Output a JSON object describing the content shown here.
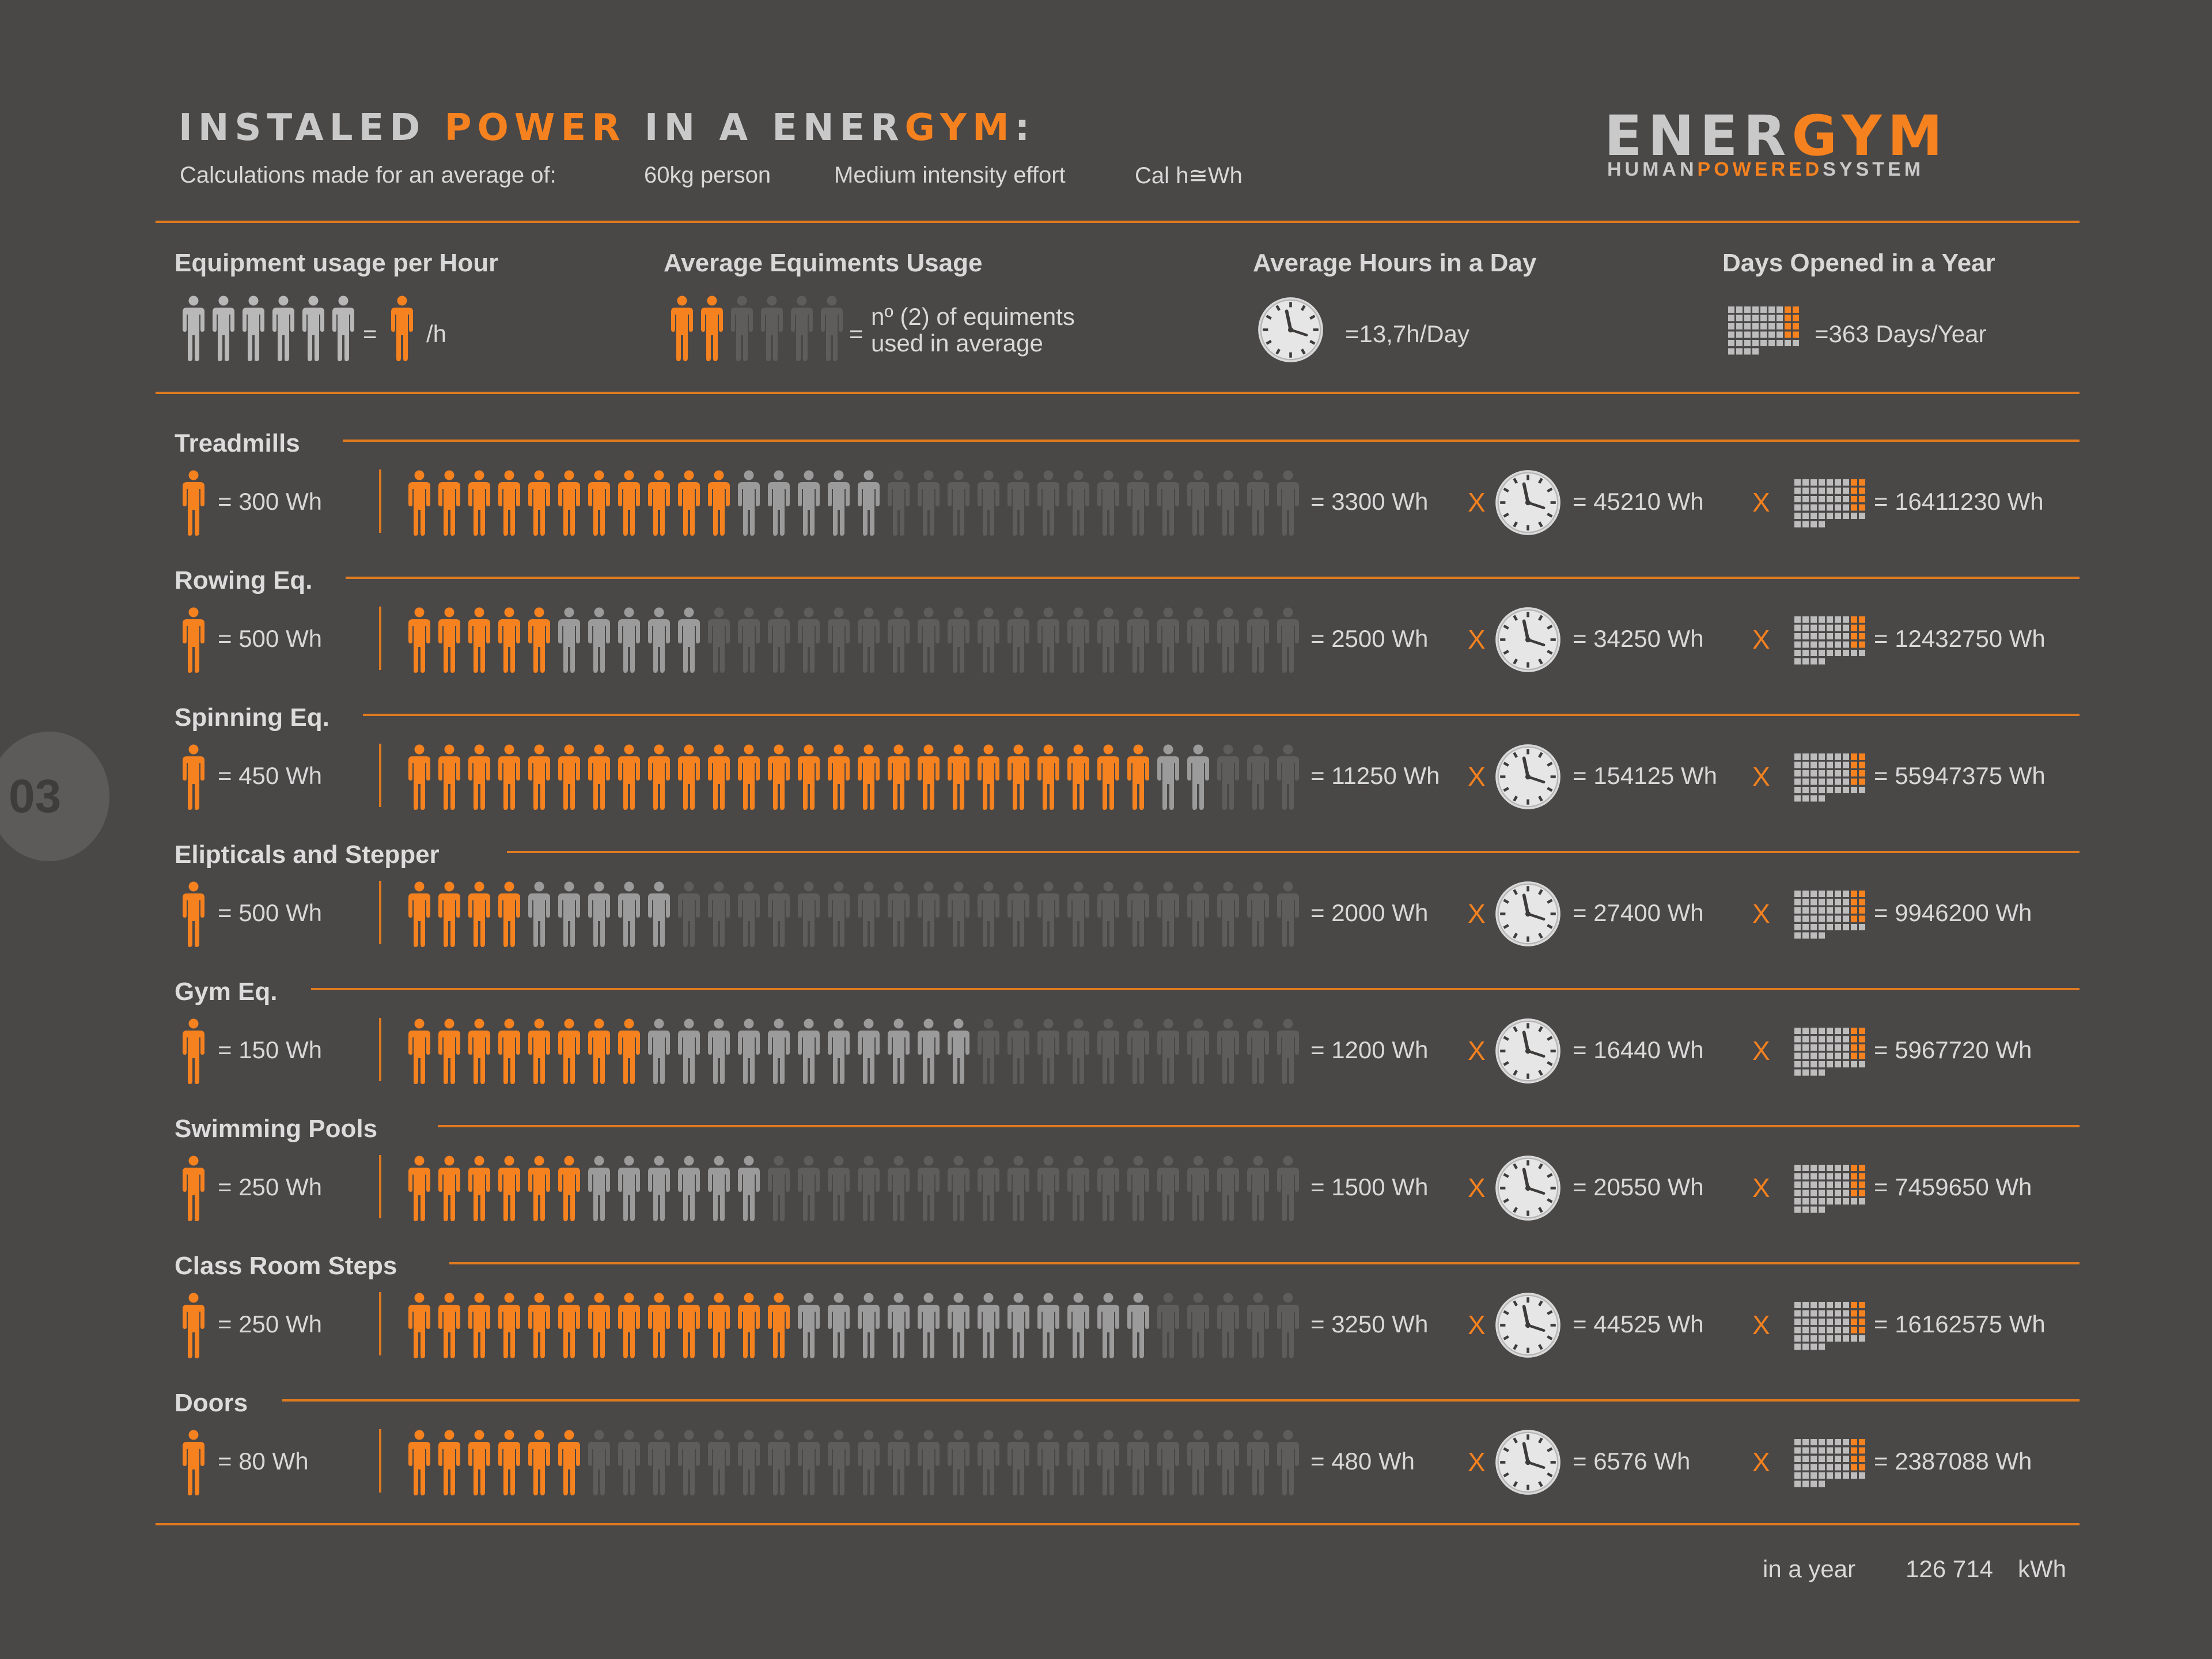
{
  "header": {
    "title_pre": "INSTALED ",
    "title_hl1": "POWER",
    "title_mid": " IN A ENER",
    "title_hl2": "GYM",
    "title_post": ":",
    "sub_intro": "Calculations made for an average of:",
    "sub_person": "60kg person",
    "sub_effort": "Medium intensity effort",
    "sub_cal": "Cal h≅Wh"
  },
  "logo": {
    "part1": "ENER",
    "part2": "GYM",
    "tag1": "HUMAN",
    "tag2": "POWERED",
    "tag3": "SYSTEM"
  },
  "legend": {
    "usage_title": "Equipment usage per Hour",
    "usage_eq": "=",
    "usage_unit": "/h",
    "avg_title": "Average Equiments Usage",
    "avg_eq": "=",
    "avg_text1": "nº (2) of equiments",
    "avg_text2": "used in average",
    "hours_title": "Average Hours in a Day",
    "hours_value": "=13,7h/Day",
    "days_title": "Days Opened in a Year",
    "days_value": "=363 Days/Year"
  },
  "rows": [
    {
      "name": "Treadmills",
      "per": "= 300 Wh",
      "orange": 11,
      "light": 5,
      "hour": "= 3300 Wh",
      "day": "= 45210 Wh",
      "year": "= 16411230 Wh"
    },
    {
      "name": "Rowing Eq.",
      "per": "= 500 Wh",
      "orange": 5,
      "light": 5,
      "hour": "= 2500 Wh",
      "day": "= 34250 Wh",
      "year": "= 12432750 Wh"
    },
    {
      "name": "Spinning Eq.",
      "per": "= 450 Wh",
      "orange": 25,
      "light": 2,
      "hour": "= 11250 Wh",
      "day": "= 154125 Wh",
      "year": "= 55947375 Wh"
    },
    {
      "name": "Elipticals and Stepper",
      "per": "= 500 Wh",
      "orange": 4,
      "light": 5,
      "hour": "= 2000 Wh",
      "day": "= 27400 Wh",
      "year": "= 9946200 Wh"
    },
    {
      "name": "Gym Eq.",
      "per": "= 150 Wh",
      "orange": 8,
      "light": 11,
      "hour": "= 1200 Wh",
      "day": "= 16440 Wh",
      "year": "= 5967720 Wh"
    },
    {
      "name": "Swimming Pools",
      "per": "= 250 Wh",
      "orange": 6,
      "light": 6,
      "hour": "= 1500 Wh",
      "day": "= 20550 Wh",
      "year": "= 7459650 Wh"
    },
    {
      "name": "Class Room Steps",
      "per": "= 250 Wh",
      "orange": 13,
      "light": 12,
      "hour": "= 3250 Wh",
      "day": "= 44525 Wh",
      "year": "= 16162575 Wh"
    },
    {
      "name": "Doors",
      "per": "= 80 Wh",
      "orange": 6,
      "light": 0,
      "hour": "= 480 Wh",
      "day": "= 6576 Wh",
      "year": "= 2387088 Wh"
    }
  ],
  "x_sign": "X",
  "footer": {
    "label": "in a year",
    "value": "126 714",
    "unit": "kWh"
  },
  "page_number": "03",
  "colors": {
    "orange": "#f5821f",
    "light": "#9b9b9b",
    "dark": "#5f5c5c",
    "bg": "#4a4747"
  }
}
